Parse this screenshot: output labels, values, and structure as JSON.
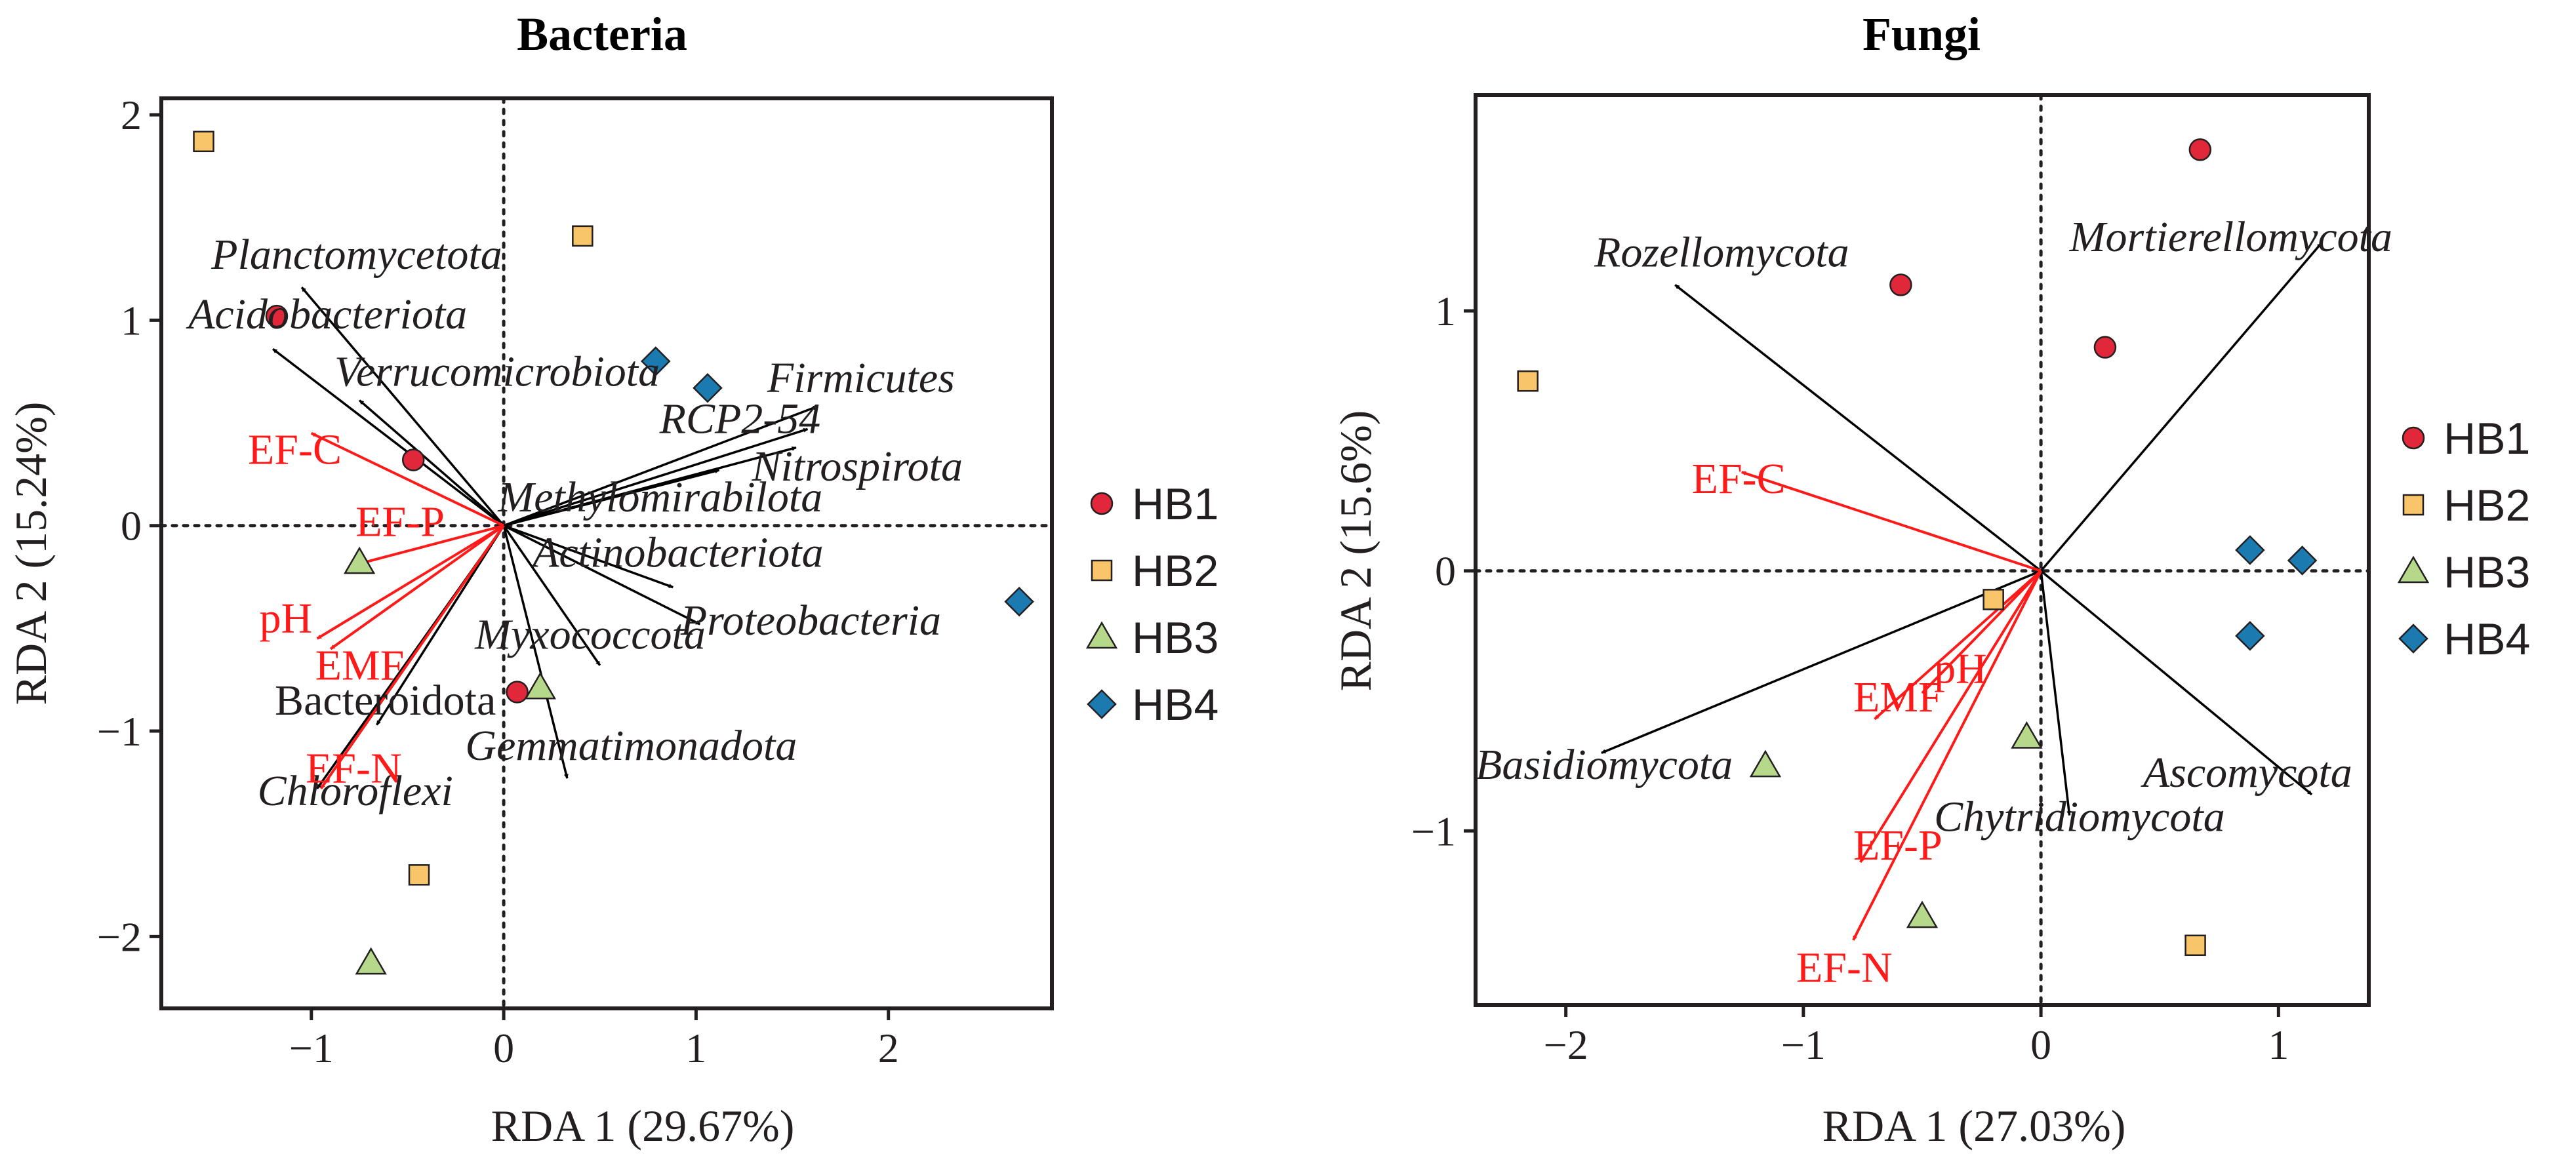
{
  "chart_data": [
    {
      "type": "scatter",
      "subtype": "rda-biplot",
      "title": "Bacteria",
      "xlabel": "RDA 1 (29.67%)",
      "ylabel": "RDA 2 (15.24%)",
      "xlim": [
        -1.78,
        2.85
      ],
      "ylim": [
        -2.35,
        2.08
      ],
      "xticks": [
        -1,
        0,
        1,
        2
      ],
      "xtick_labels": [
        "−1",
        "0",
        "1",
        "2"
      ],
      "yticks": [
        -2,
        -1,
        0,
        1,
        2
      ],
      "ytick_labels": [
        "−2",
        "−1",
        "0",
        "1",
        "2"
      ],
      "grid": false,
      "zero_lines": true,
      "legend": "right",
      "series": [
        {
          "name": "HB1",
          "marker": "circle",
          "color": "#e0283a",
          "points": [
            [
              -1.18,
              1.02
            ],
            [
              -0.47,
              0.32
            ],
            [
              0.07,
              -0.81
            ]
          ]
        },
        {
          "name": "HB2",
          "marker": "square",
          "color": "#f9c56a",
          "points": [
            [
              -1.56,
              1.87
            ],
            [
              0.41,
              1.41
            ],
            [
              -0.44,
              -1.7
            ]
          ]
        },
        {
          "name": "HB3",
          "marker": "triangle",
          "color": "#b5d88b",
          "points": [
            [
              -0.75,
              -0.18
            ],
            [
              0.19,
              -0.79
            ],
            [
              -0.69,
              -2.13
            ]
          ]
        },
        {
          "name": "HB4",
          "marker": "diamond",
          "color": "#1b7bb1",
          "points": [
            [
              0.79,
              0.8
            ],
            [
              1.06,
              0.67
            ],
            [
              2.68,
              -0.37
            ]
          ]
        }
      ],
      "species_vectors": [
        {
          "label": "Planctomycetota",
          "x": -1.05,
          "y": 1.16,
          "lx": -1.52,
          "ly": 1.25,
          "italic": true
        },
        {
          "label": "Acidobacteriota",
          "x": -1.2,
          "y": 0.86,
          "lx": -1.64,
          "ly": 0.96,
          "italic": true
        },
        {
          "label": "Verrucomicrobiota",
          "x": -0.75,
          "y": 0.61,
          "lx": -0.88,
          "ly": 0.68,
          "italic": true
        },
        {
          "label": "Firmicutes",
          "x": 1.63,
          "y": 0.58,
          "lx": 1.37,
          "ly": 0.65,
          "italic": true
        },
        {
          "label": "RCP2-54",
          "x": 1.58,
          "y": 0.47,
          "lx": 0.81,
          "ly": 0.45,
          "italic": true
        },
        {
          "label": "Nitrospirota",
          "x": 1.52,
          "y": 0.38,
          "lx": 1.29,
          "ly": 0.22,
          "italic": true
        },
        {
          "label": "Methylomirabilota",
          "x": 1.12,
          "y": 0.27,
          "lx": -0.03,
          "ly": 0.07,
          "italic": true
        },
        {
          "label": "Actinobacteriota",
          "x": 0.88,
          "y": -0.3,
          "lx": 0.15,
          "ly": -0.2,
          "italic": true
        },
        {
          "label": "Proteobacteria",
          "x": 1.02,
          "y": -0.48,
          "lx": 0.92,
          "ly": -0.53,
          "italic": true
        },
        {
          "label": "Myxococcota",
          "x": 0.5,
          "y": -0.68,
          "lx": -0.15,
          "ly": -0.6,
          "italic": true
        },
        {
          "label": "Bacteroidota",
          "x": -0.66,
          "y": -0.97,
          "lx": -1.19,
          "ly": -0.92,
          "italic": false
        },
        {
          "label": "Chloroflexi",
          "x": -0.97,
          "y": -1.28,
          "lx": -1.28,
          "ly": -1.36,
          "italic": true
        },
        {
          "label": "Gemmatimonadota",
          "x": 0.33,
          "y": -1.23,
          "lx": -0.2,
          "ly": -1.14,
          "italic": true
        }
      ],
      "env_vectors": [
        {
          "label": "EF-C",
          "x": -1.0,
          "y": 0.45,
          "lx": -1.33,
          "ly": 0.3
        },
        {
          "label": "EF-P",
          "x": -0.77,
          "y": -0.19,
          "lx": -0.77,
          "ly": -0.05
        },
        {
          "label": "pH",
          "x": -0.97,
          "y": -0.55,
          "lx": -1.27,
          "ly": -0.52
        },
        {
          "label": "EMF",
          "x": -0.9,
          "y": -0.6,
          "lx": -0.98,
          "ly": -0.75
        },
        {
          "label": "EF-N",
          "x": -0.95,
          "y": -1.28,
          "lx": -1.03,
          "ly": -1.25
        }
      ]
    },
    {
      "type": "scatter",
      "subtype": "rda-biplot",
      "title": "Fungi",
      "xlabel": "RDA 1 (27.03%)",
      "ylabel": "RDA 2 (15.6%)",
      "xlim": [
        -2.38,
        1.38
      ],
      "ylim": [
        -1.67,
        1.83
      ],
      "xticks": [
        -2,
        -1,
        0,
        1
      ],
      "xtick_labels": [
        "−2",
        "−1",
        "0",
        "1"
      ],
      "yticks": [
        -1,
        0,
        1
      ],
      "ytick_labels": [
        "−1",
        "0",
        "1"
      ],
      "grid": false,
      "zero_lines": true,
      "legend": "right",
      "series": [
        {
          "name": "HB1",
          "marker": "circle",
          "color": "#e0283a",
          "points": [
            [
              0.67,
              1.62
            ],
            [
              -0.59,
              1.1
            ],
            [
              0.27,
              0.86
            ]
          ]
        },
        {
          "name": "HB2",
          "marker": "square",
          "color": "#f9c56a",
          "points": [
            [
              -2.16,
              0.73
            ],
            [
              -0.2,
              -0.11
            ],
            [
              0.65,
              -1.44
            ]
          ]
        },
        {
          "name": "HB3",
          "marker": "triangle",
          "color": "#b5d88b",
          "points": [
            [
              -0.06,
              -0.64
            ],
            [
              -1.16,
              -0.75
            ],
            [
              -0.5,
              -1.33
            ]
          ]
        },
        {
          "name": "HB4",
          "marker": "diamond",
          "color": "#1b7bb1",
          "points": [
            [
              0.88,
              0.08
            ],
            [
              1.1,
              0.04
            ],
            [
              0.88,
              -0.25
            ]
          ]
        }
      ],
      "species_vectors": [
        {
          "label": "Rozellomycota",
          "x": -1.54,
          "y": 1.1,
          "lx": -1.88,
          "ly": 1.17,
          "italic": true
        },
        {
          "label": "Mortierellomycota",
          "x": 1.18,
          "y": 1.26,
          "lx": 0.12,
          "ly": 1.23,
          "italic": true
        },
        {
          "label": "Basidiomycota",
          "x": -1.85,
          "y": -0.7,
          "lx": -2.38,
          "ly": -0.8,
          "italic": true
        },
        {
          "label": "Ascomycota",
          "x": 1.14,
          "y": -0.86,
          "lx": 0.43,
          "ly": -0.83,
          "italic": true
        },
        {
          "label": "Chytridiomycota",
          "x": 0.12,
          "y": -0.94,
          "lx": -0.45,
          "ly": -1.0,
          "italic": true
        }
      ],
      "env_vectors": [
        {
          "label": "EF-C",
          "x": -1.26,
          "y": 0.38,
          "lx": -1.47,
          "ly": 0.3
        },
        {
          "label": "EMF",
          "x": -0.7,
          "y": -0.57,
          "lx": -0.79,
          "ly": -0.54
        },
        {
          "label": "pH",
          "x": -0.5,
          "y": -0.47,
          "lx": -0.45,
          "ly": -0.43
        },
        {
          "label": "EF-P",
          "x": -0.76,
          "y": -1.12,
          "lx": -0.79,
          "ly": -1.11
        },
        {
          "label": "EF-N",
          "x": -0.79,
          "y": -1.42,
          "lx": -1.03,
          "ly": -1.58
        }
      ]
    }
  ]
}
